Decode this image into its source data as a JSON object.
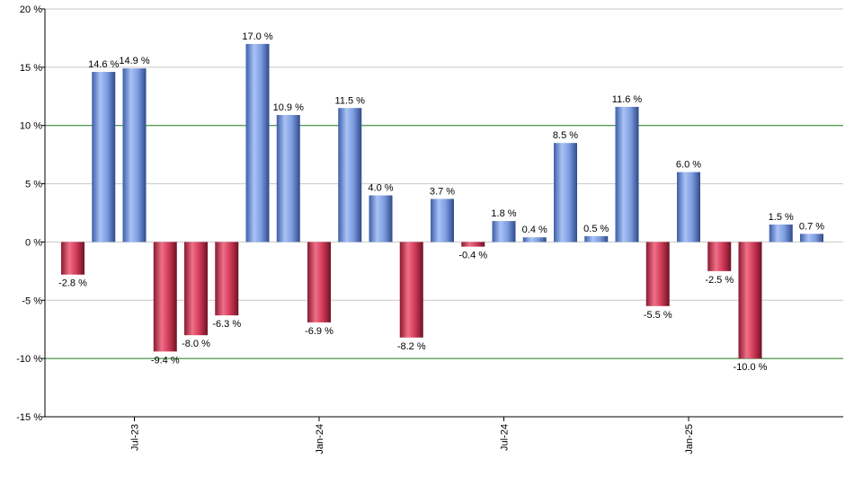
{
  "chart_data": {
    "type": "bar",
    "title": "",
    "xlabel": "",
    "ylabel": "",
    "ylim": [
      -15,
      20
    ],
    "y_ticks": [
      -15,
      -10,
      -5,
      0,
      5,
      10,
      15,
      20
    ],
    "y_tick_labels": [
      "-15 %",
      "-10 %",
      "-5 %",
      "0 %",
      "5 %",
      "10 %",
      "15 %",
      "20 %"
    ],
    "reference_lines": [
      10,
      -10
    ],
    "grid": true,
    "x_tick_labels": [
      {
        "label": "Jul-23",
        "index": 2
      },
      {
        "label": "Jan-24",
        "index": 8
      },
      {
        "label": "Jul-24",
        "index": 14
      },
      {
        "label": "Jan-25",
        "index": 20
      }
    ],
    "values": [
      -2.8,
      14.6,
      14.9,
      -9.4,
      -8.0,
      -6.3,
      17.0,
      10.9,
      -6.9,
      11.5,
      4.0,
      -8.2,
      3.7,
      -0.4,
      1.8,
      0.4,
      8.5,
      0.5,
      11.6,
      -5.5,
      6.0,
      -2.5,
      -10.0,
      1.5,
      0.7
    ],
    "value_labels": [
      "-2.8 %",
      "14.6 %",
      "14.9 %",
      "-9.4 %",
      "-8.0 %",
      "-6.3 %",
      "17.0 %",
      "10.9 %",
      "-6.9 %",
      "11.5 %",
      "4.0 %",
      "-8.2 %",
      "3.7 %",
      "-0.4 %",
      "1.8 %",
      "0.4 %",
      "8.5 %",
      "0.5 %",
      "11.6 %",
      "-5.5 %",
      "6.0 %",
      "-2.5 %",
      "-10.0 %",
      "1.5 %",
      "0.7 %"
    ],
    "colors": {
      "positive": "#6b8fd6",
      "negative": "#c8344f",
      "grid": "#c8c8c8",
      "reference_line": "#1a7a1a",
      "axis": "#000000"
    }
  }
}
